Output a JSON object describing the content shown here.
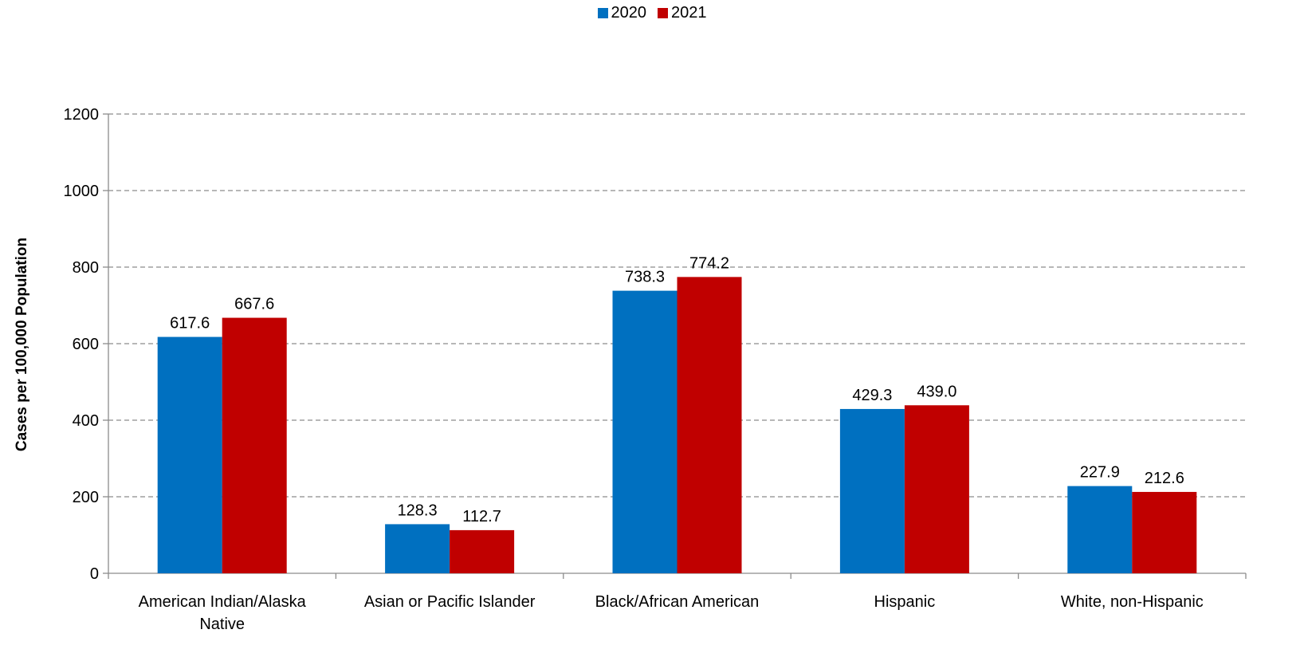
{
  "chart_data": {
    "type": "bar",
    "title": "",
    "xlabel": "",
    "ylabel": "Cases per 100,000 Population",
    "ylim": [
      0,
      1200
    ],
    "yticks": [
      0,
      200,
      400,
      600,
      800,
      1000,
      1200
    ],
    "grid": true,
    "legend_position": "top-center",
    "categories": [
      [
        "American Indian/Alaska",
        "Native"
      ],
      [
        "Asian or Pacific Islander"
      ],
      [
        "Black/African American"
      ],
      [
        "Hispanic"
      ],
      [
        "White, non-Hispanic"
      ]
    ],
    "series": [
      {
        "name": "2020",
        "color": "#0070C0",
        "values": [
          617.6,
          128.3,
          738.3,
          429.3,
          227.9
        ],
        "labels": [
          "617.6",
          "128.3",
          "738.3",
          "429.3",
          "227.9"
        ]
      },
      {
        "name": "2021",
        "color": "#C00000",
        "values": [
          667.6,
          112.7,
          774.2,
          439.0,
          212.6
        ],
        "labels": [
          "667.6",
          "112.7",
          "774.2",
          "439.0",
          "212.6"
        ]
      }
    ]
  }
}
